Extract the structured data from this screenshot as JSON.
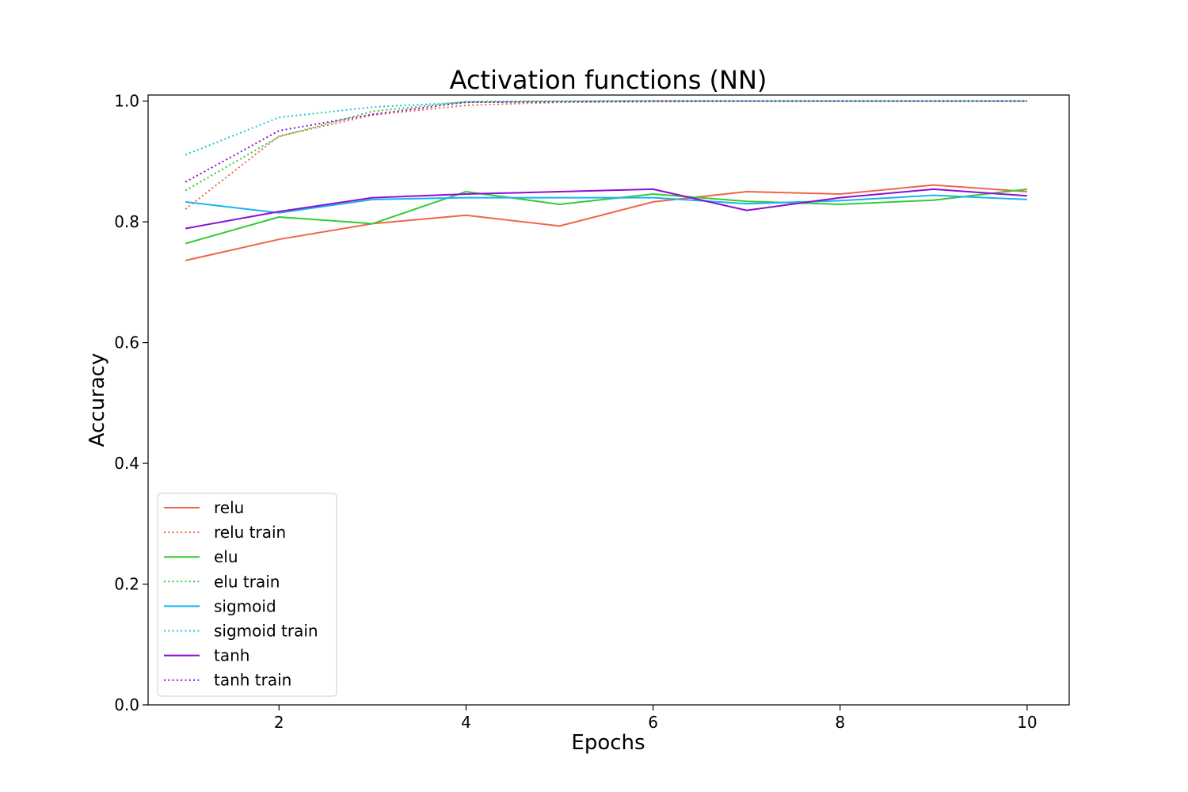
{
  "chart_data": {
    "type": "line",
    "title": "Activation functions (NN)",
    "xlabel": "Epochs",
    "ylabel": "Accuracy",
    "xlim": [
      0.6,
      10.45
    ],
    "ylim": [
      0.0,
      1.01
    ],
    "x": [
      1,
      2,
      3,
      4,
      5,
      6,
      7,
      8,
      9,
      10
    ],
    "xticks": [
      2,
      4,
      6,
      8,
      10
    ],
    "yticks": [
      0.0,
      0.2,
      0.4,
      0.6,
      0.8,
      1.0
    ],
    "xtick_labels": [
      "2",
      "4",
      "6",
      "8",
      "10"
    ],
    "ytick_labels": [
      "0.0",
      "0.2",
      "0.4",
      "0.6",
      "0.8",
      "1.0"
    ],
    "grid": false,
    "legend_position": "lower-left",
    "series": [
      {
        "name": "relu",
        "color": "#f2654a",
        "style": "solid",
        "values": [
          0.736,
          0.771,
          0.797,
          0.811,
          0.793,
          0.833,
          0.85,
          0.846,
          0.861,
          0.85
        ]
      },
      {
        "name": "relu train",
        "color": "#f2654a",
        "style": "dotted",
        "values": [
          0.821,
          0.942,
          0.977,
          0.993,
          0.998,
          0.999,
          1.0,
          1.0,
          1.0,
          1.0
        ]
      },
      {
        "name": "elu",
        "color": "#34cc34",
        "style": "solid",
        "values": [
          0.764,
          0.808,
          0.797,
          0.85,
          0.829,
          0.846,
          0.834,
          0.829,
          0.836,
          0.854
        ]
      },
      {
        "name": "elu train",
        "color": "#34cc34",
        "style": "dotted",
        "values": [
          0.852,
          0.941,
          0.983,
          0.999,
          1.0,
          1.0,
          1.0,
          1.0,
          1.0,
          1.0
        ]
      },
      {
        "name": "sigmoid",
        "color": "#1ab2f0",
        "style": "solid",
        "values": [
          0.833,
          0.815,
          0.837,
          0.84,
          0.84,
          0.84,
          0.83,
          0.835,
          0.844,
          0.837
        ]
      },
      {
        "name": "sigmoid train",
        "color": "#1fc7d6",
        "style": "dotted",
        "values": [
          0.911,
          0.973,
          0.99,
          0.998,
          0.999,
          1.0,
          1.0,
          1.0,
          1.0,
          1.0
        ]
      },
      {
        "name": "tanh",
        "color": "#8b0fd6",
        "style": "solid",
        "values": [
          0.789,
          0.817,
          0.84,
          0.846,
          0.85,
          0.854,
          0.819,
          0.84,
          0.854,
          0.843
        ]
      },
      {
        "name": "tanh train",
        "color": "#8b0fd6",
        "style": "dotted",
        "values": [
          0.866,
          0.951,
          0.978,
          0.998,
          0.999,
          1.0,
          1.0,
          1.0,
          1.0,
          1.0
        ]
      }
    ]
  }
}
